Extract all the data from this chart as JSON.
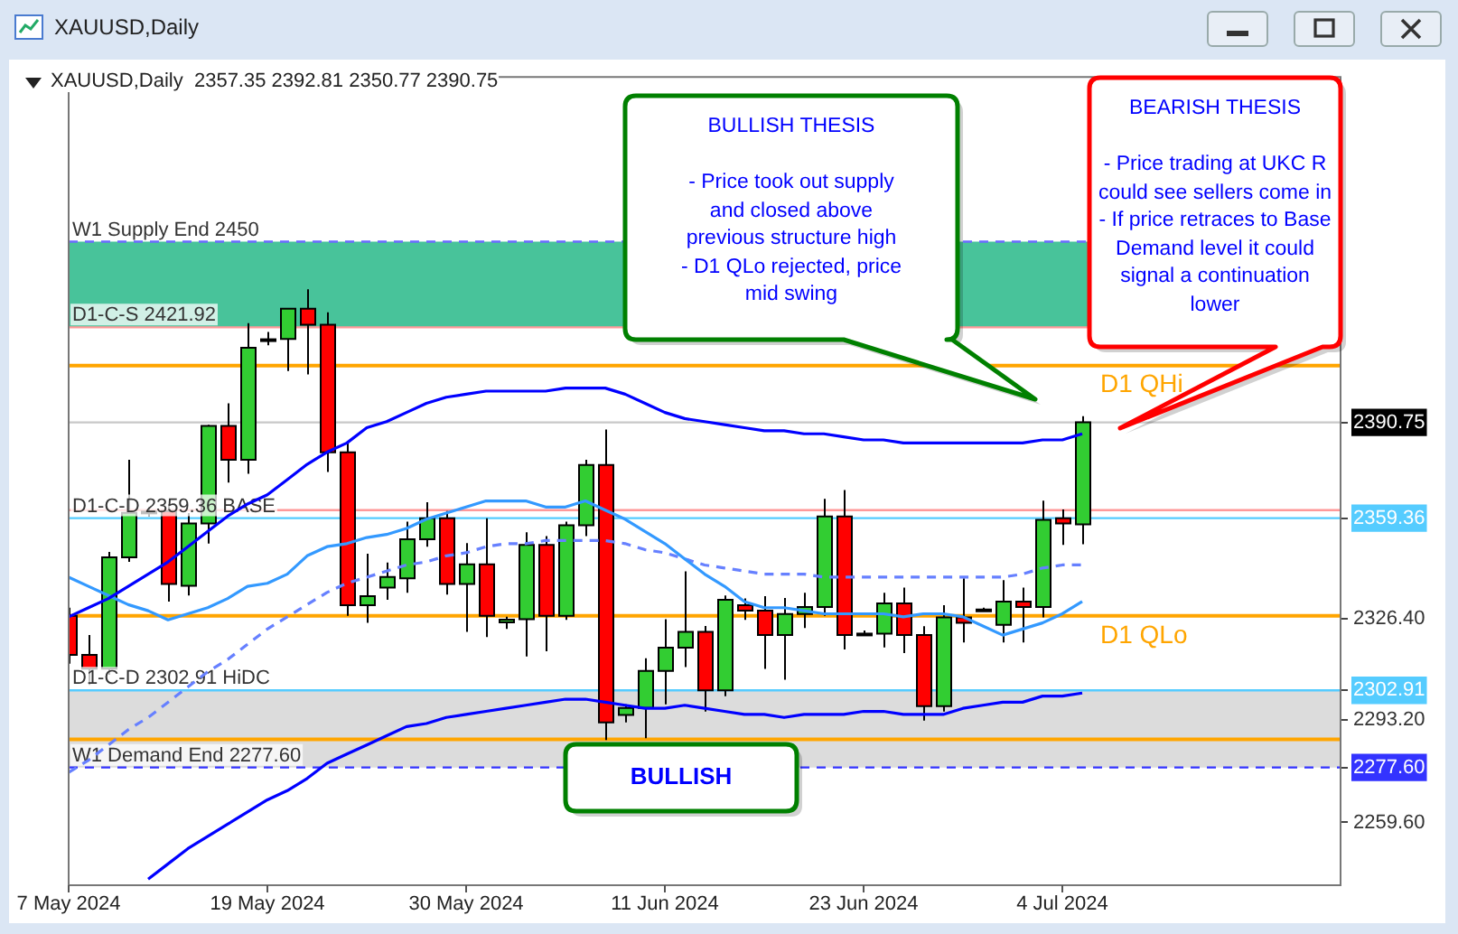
{
  "chart_data": {
    "type": "candlestick",
    "title": "XAUUSD,Daily",
    "subtitle": "XAUUSD,Daily  2357.35 2392.81 2350.77 2390.75",
    "categories": [
      "7 May 2024",
      null,
      null,
      null,
      null,
      null,
      null,
      null,
      null,
      null,
      "19 May 2024",
      null,
      null,
      null,
      null,
      null,
      null,
      null,
      null,
      null,
      "30 May 2024",
      null,
      null,
      null,
      null,
      null,
      null,
      null,
      null,
      null,
      "11 Jun 2024",
      null,
      null,
      null,
      null,
      null,
      null,
      null,
      null,
      null,
      "23 Jun 2024",
      null,
      null,
      null,
      null,
      null,
      null,
      null,
      null,
      null,
      "4 Jul 2024",
      null,
      null,
      null,
      null,
      null,
      null,
      null,
      null,
      null,
      null,
      null,
      null,
      null,
      null
    ],
    "ohlc": [
      [
        2327.3,
        2330,
        2311.6,
        2314.5
      ],
      [
        2314.5,
        2321,
        2304.7,
        2310
      ],
      [
        2310,
        2348.3,
        2308,
        2346.5
      ],
      [
        2346.5,
        2378.5,
        2345,
        2361.1
      ],
      [
        2361.1,
        2363,
        2360,
        2361.5
      ],
      [
        2361.7,
        2364,
        2332,
        2337.8
      ],
      [
        2337.2,
        2361,
        2334,
        2357.6
      ],
      [
        2357.6,
        2390,
        2351,
        2389.6
      ],
      [
        2389.6,
        2397,
        2371,
        2378.5
      ],
      [
        2378.5,
        2423.3,
        2373.9,
        2415.2
      ],
      [
        2418,
        2420.4,
        2416,
        2417.5
      ],
      [
        2418.1,
        2428.2,
        2407.6,
        2428
      ],
      [
        2428,
        2434.4,
        2406.5,
        2422.8
      ],
      [
        2422.8,
        2426.8,
        2374.5,
        2380.9
      ],
      [
        2380.9,
        2383.8,
        2327.3,
        2330.8
      ],
      [
        2330.8,
        2347.7,
        2325,
        2333.8
      ],
      [
        2336.6,
        2344.8,
        2332.6,
        2340.1
      ],
      [
        2339.6,
        2358.2,
        2334.9,
        2352.4
      ],
      [
        2352.4,
        2364.6,
        2350,
        2359.3
      ],
      [
        2359.3,
        2361.7,
        2334.3,
        2337.8
      ],
      [
        2337.8,
        2351.2,
        2322.1,
        2344.2
      ],
      [
        2344.2,
        2359.3,
        2320.4,
        2327.3
      ],
      [
        2325.2,
        2327,
        2323,
        2326.1
      ],
      [
        2326.2,
        2354.7,
        2314,
        2350.6
      ],
      [
        2350.6,
        2353.5,
        2315.7,
        2327.3
      ],
      [
        2327.3,
        2358.2,
        2326,
        2357
      ],
      [
        2357,
        2378.5,
        2353.5,
        2376.8
      ],
      [
        2376.8,
        2388.4,
        2286.6,
        2292.4
      ],
      [
        2294.8,
        2298.3,
        2292.4,
        2297.1
      ],
      [
        2297.1,
        2313.4,
        2287.2,
        2309.3
      ],
      [
        2309.3,
        2326.2,
        2298.3,
        2316.9
      ],
      [
        2316.9,
        2341.9,
        2310.5,
        2322.1
      ],
      [
        2322.1,
        2324,
        2295.9,
        2302.9
      ],
      [
        2302.9,
        2334,
        2301,
        2332.6
      ],
      [
        2330.8,
        2333,
        2326,
        2329
      ],
      [
        2329,
        2333.8,
        2309.9,
        2321
      ],
      [
        2321,
        2333.2,
        2306.4,
        2327.9
      ],
      [
        2327.9,
        2334.9,
        2323.3,
        2330.2
      ],
      [
        2330.2,
        2365.7,
        2327.3,
        2359.9
      ],
      [
        2359.9,
        2368.6,
        2316.3,
        2321
      ],
      [
        2321.5,
        2322.5,
        2321,
        2321.5
      ],
      [
        2321.5,
        2334.9,
        2317,
        2331.4
      ],
      [
        2331.4,
        2336.6,
        2315.1,
        2321
      ],
      [
        2321,
        2323.9,
        2293,
        2297.7
      ],
      [
        2297.7,
        2330.8,
        2295.9,
        2326.8
      ],
      [
        2326.8,
        2339.6,
        2318.6,
        2325
      ],
      [
        2329.4,
        2330,
        2329,
        2329.4
      ],
      [
        2324.4,
        2339,
        2318.6,
        2332
      ],
      [
        2332,
        2336.6,
        2318.6,
        2330.2
      ],
      [
        2330.2,
        2365.1,
        2326.8,
        2358.8
      ],
      [
        2359.3,
        2362.2,
        2350.6,
        2357.6
      ],
      [
        2357.35,
        2392.81,
        2350.77,
        2390.75
      ],
      null,
      null,
      null,
      null,
      null,
      null,
      null,
      null,
      null,
      null,
      null,
      null,
      null
    ],
    "colors": [
      "#ff0000",
      "#ff0000",
      "#32cd32",
      "#32cd32",
      "#32cd32",
      "#ff0000",
      "#32cd32",
      "#32cd32",
      "#ff0000",
      "#32cd32",
      "#ff0000",
      "#32cd32",
      "#ff0000",
      "#ff0000",
      "#ff0000",
      "#32cd32",
      "#32cd32",
      "#32cd32",
      "#32cd32",
      "#ff0000",
      "#32cd32",
      "#ff0000",
      "#32cd32",
      "#32cd32",
      "#ff0000",
      "#32cd32",
      "#32cd32",
      "#ff0000",
      "#32cd32",
      "#32cd32",
      "#32cd32",
      "#32cd32",
      "#ff0000",
      "#32cd32",
      "#ff0000",
      "#ff0000",
      "#32cd32",
      "#32cd32",
      "#32cd32",
      "#ff0000",
      "#000000",
      "#32cd32",
      "#ff0000",
      "#ff0000",
      "#32cd32",
      "#ff0000",
      "#000000",
      "#32cd32",
      "#ff0000",
      "#32cd32",
      "#ff0000",
      "#32cd32",
      null,
      null,
      null,
      null,
      null,
      null,
      null,
      null,
      null,
      null,
      null,
      null,
      null
    ],
    "series": [
      {
        "type": "line",
        "color": "#0000ff",
        "values": [
          2327,
          2330,
          2333,
          2337,
          2341,
          2345,
          2350,
          2355,
          2360,
          2364,
          2367,
          2372,
          2377,
          2381,
          2384,
          2389,
          2391,
          2394,
          2397,
          2399,
          2400,
          2401,
          2401,
          2401,
          2401,
          2402,
          2402,
          2402,
          2400,
          2397,
          2394,
          2392,
          2391,
          2390,
          2389,
          2388,
          2388,
          2387,
          2387,
          2386,
          2385,
          2385,
          2384,
          2384,
          2384,
          2384,
          2384,
          2384,
          2384,
          2385,
          2385,
          2387,
          null,
          null,
          null,
          null,
          null,
          null,
          null,
          null,
          null,
          null,
          null,
          null,
          null
        ]
      },
      {
        "type": "line",
        "color": "#3399ff",
        "values": [
          2340,
          2337,
          2334,
          2331,
          2329,
          2326,
          2328,
          2330,
          2333,
          2337,
          2338,
          2341,
          2347,
          2350,
          2351,
          2353,
          2354,
          2356,
          2359,
          2361,
          2363,
          2365,
          2365,
          2365,
          2363,
          2363,
          2365,
          2362,
          2359,
          2355,
          2351,
          2346,
          2341,
          2337,
          2332,
          2330,
          2330,
          2329,
          2328,
          2328,
          2328,
          2328,
          2327,
          2328,
          2328,
          2327,
          2324,
          2321,
          2323,
          2325,
          2328,
          2332,
          null,
          null,
          null,
          null,
          null,
          null,
          null,
          null,
          null,
          null,
          null,
          null,
          null
        ]
      },
      {
        "type": "line",
        "color": "#6680ff",
        "line_style": "dashed",
        "values": [
          2276,
          2280,
          2285,
          2290,
          2294,
          2299,
          2304,
          2309,
          2313,
          2318,
          2323,
          2327,
          2331,
          2335,
          2338,
          2340,
          2342,
          2344,
          2345,
          2347,
          2348,
          2350,
          2351,
          2351,
          2352,
          2352,
          2352,
          2352,
          2351,
          2349,
          2348,
          2346,
          2344,
          2343,
          2342,
          2341,
          2341,
          2341,
          2340,
          2340,
          2340,
          2340,
          2340,
          2340,
          2340,
          2340,
          2340,
          2340,
          2341,
          2343,
          2344,
          2344,
          null,
          null,
          null,
          null,
          null,
          null,
          null,
          null,
          null,
          null,
          null,
          null,
          null
        ]
      },
      {
        "type": "line",
        "color": "#0000ff",
        "values": [
          null,
          null,
          null,
          null,
          2241,
          2246,
          2251,
          2255,
          2259,
          2263,
          2267,
          2270,
          2274,
          2279,
          2282,
          2285,
          2288,
          2291,
          2292,
          2294,
          2295,
          2296,
          2297,
          2298,
          2299,
          2300,
          2300,
          2299,
          2298,
          2297,
          2297,
          2298,
          2297,
          2296,
          2295,
          2295,
          2294,
          2295,
          2295,
          2295,
          2296,
          2296,
          2295,
          2295,
          2295,
          2297,
          2298,
          2299,
          2299,
          2301,
          2301,
          2302,
          null,
          null,
          null,
          null,
          null,
          null,
          null,
          null,
          null,
          null,
          null,
          null,
          null
        ]
      }
    ],
    "marker": "none",
    "ylim": [
      2239,
      2504
    ],
    "yticks": [
      {
        "value": 2259.6,
        "label": "2259.60"
      },
      {
        "value": 2277.6,
        "label": "2277.60"
      },
      {
        "value": 2293.2,
        "label": "2293.20"
      },
      2302.91,
      {
        "value": 2326.4,
        "label": "2326.40"
      },
      2359.36,
      2390.75
    ],
    "grid": false,
    "legend": false,
    "ref_lines": [
      {
        "axis": "y",
        "value": 2450,
        "label": "W1 Supply End 2450",
        "color": "#6b6bff",
        "line_style": "dashed"
      },
      {
        "axis": "y",
        "value": 2421.92,
        "label": "D1-C-S 2421.92",
        "color": "#ff9999"
      },
      {
        "axis": "y",
        "value": 2409.4,
        "label": "D1 QHi",
        "color": "#ffa500"
      },
      {
        "axis": "y",
        "value": 2390.75,
        "color": "#c8c8c8"
      },
      {
        "axis": "y",
        "value": 2362,
        "color": "#ff9999"
      },
      {
        "axis": "y",
        "value": 2359.36,
        "label": "D1-C-D 2359.36 BASE",
        "color": "#55ccff"
      },
      {
        "axis": "y",
        "value": 2327.3,
        "label": "D1 QLo",
        "color": "#ffa500"
      },
      {
        "axis": "y",
        "value": 2302.91,
        "label": "D1-C-D 2302.91 HiDC",
        "color": "#55ccff"
      },
      {
        "axis": "y",
        "value": 2286.8,
        "color": "#ffa500"
      },
      {
        "axis": "y",
        "value": 2277.6,
        "label": "W1 Demand End 2277.60",
        "color": "#3333ff",
        "line_style": "dashed"
      }
    ],
    "bands": [
      {
        "axis": "y",
        "from": 2421.92,
        "to": 2450,
        "color": "#48c39a"
      },
      {
        "axis": "y",
        "from": 2277.6,
        "to": 2302.91,
        "color": "#dcdcdc"
      }
    ],
    "annotations": [
      "BULLISH THESIS\n\n- Price took out supply\nand closed above\nprevious structure high\n- D1 QLo rejected, price\nmid swing",
      "BEARISH THESIS\n\n- Price trading at UKC R\ncould see sellers come in\n- If price retraces to Base\nDemand level it could\nsignal a continuation\nlower",
      "BULLISH"
    ]
  }
}
